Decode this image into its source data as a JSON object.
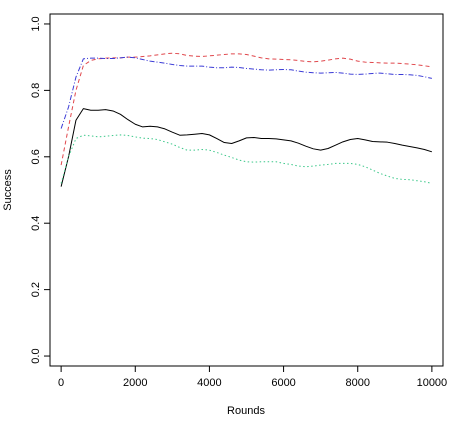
{
  "chart_data": {
    "type": "line",
    "title": "",
    "xlabel": "Rounds",
    "ylabel": "Success",
    "xlim": [
      -300,
      10300
    ],
    "ylim": [
      -0.03,
      1.03
    ],
    "x_ticks": [
      0,
      2000,
      4000,
      6000,
      8000,
      10000
    ],
    "y_ticks": [
      0.0,
      0.2,
      0.4,
      0.6,
      0.8,
      1.0
    ],
    "x_tick_labels": [
      "0",
      "2000",
      "4000",
      "6000",
      "8000",
      "10000"
    ],
    "y_tick_labels": [
      "0.0",
      "0.2",
      "0.4",
      "0.6",
      "0.8",
      "1.0"
    ],
    "grid": false,
    "legend": false,
    "series": [
      {
        "color": "#000000",
        "dash": "solid",
        "x": [
          0,
          200,
          400,
          600,
          800,
          1000,
          1200,
          1400,
          1600,
          1800,
          2000,
          2200,
          2400,
          2600,
          2800,
          3000,
          3200,
          3400,
          3600,
          3800,
          4000,
          4200,
          4400,
          4600,
          4800,
          5000,
          5200,
          5400,
          5600,
          5800,
          6000,
          6200,
          6400,
          6600,
          6800,
          7000,
          7200,
          7400,
          7600,
          7800,
          8000,
          8200,
          8400,
          8600,
          8800,
          9000,
          9200,
          9400,
          9600,
          9800,
          10000
        ],
        "y": [
          0.51,
          0.6,
          0.71,
          0.745,
          0.74,
          0.74,
          0.742,
          0.738,
          0.728,
          0.712,
          0.698,
          0.69,
          0.692,
          0.69,
          0.684,
          0.674,
          0.665,
          0.666,
          0.668,
          0.67,
          0.666,
          0.655,
          0.643,
          0.64,
          0.648,
          0.657,
          0.658,
          0.655,
          0.655,
          0.654,
          0.651,
          0.648,
          0.641,
          0.632,
          0.624,
          0.62,
          0.625,
          0.635,
          0.645,
          0.652,
          0.655,
          0.651,
          0.646,
          0.645,
          0.644,
          0.64,
          0.635,
          0.631,
          0.627,
          0.622,
          0.615
        ]
      },
      {
        "color": "#e0474c",
        "dash": "dashed",
        "x": [
          0,
          200,
          400,
          600,
          800,
          1000,
          1200,
          1400,
          1600,
          1800,
          2000,
          2200,
          2400,
          2600,
          2800,
          3000,
          3200,
          3400,
          3600,
          3800,
          4000,
          4200,
          4400,
          4600,
          4800,
          5000,
          5200,
          5400,
          5600,
          5800,
          6000,
          6200,
          6400,
          6600,
          6800,
          7000,
          7200,
          7400,
          7600,
          7800,
          8000,
          8200,
          8400,
          8600,
          8800,
          9000,
          9200,
          9400,
          9600,
          9800,
          10000
        ],
        "y": [
          0.575,
          0.69,
          0.8,
          0.875,
          0.89,
          0.895,
          0.897,
          0.898,
          0.898,
          0.9,
          0.9,
          0.902,
          0.904,
          0.907,
          0.91,
          0.912,
          0.91,
          0.905,
          0.903,
          0.902,
          0.904,
          0.906,
          0.908,
          0.91,
          0.91,
          0.908,
          0.903,
          0.898,
          0.895,
          0.894,
          0.893,
          0.892,
          0.89,
          0.887,
          0.886,
          0.888,
          0.891,
          0.895,
          0.897,
          0.894,
          0.888,
          0.885,
          0.884,
          0.883,
          0.882,
          0.882,
          0.881,
          0.879,
          0.877,
          0.874,
          0.871
        ]
      },
      {
        "color": "#3b3bd6",
        "dash": "dashdot",
        "x": [
          0,
          200,
          400,
          600,
          800,
          1000,
          1200,
          1400,
          1600,
          1800,
          2000,
          2200,
          2400,
          2600,
          2800,
          3000,
          3200,
          3400,
          3600,
          3800,
          4000,
          4200,
          4400,
          4600,
          4800,
          5000,
          5200,
          5400,
          5600,
          5800,
          6000,
          6200,
          6400,
          6600,
          6800,
          7000,
          7200,
          7400,
          7600,
          7800,
          8000,
          8200,
          8400,
          8600,
          8800,
          9000,
          9200,
          9400,
          9600,
          9800,
          10000
        ],
        "y": [
          0.685,
          0.75,
          0.84,
          0.895,
          0.897,
          0.897,
          0.896,
          0.896,
          0.898,
          0.9,
          0.898,
          0.893,
          0.888,
          0.885,
          0.882,
          0.878,
          0.875,
          0.873,
          0.873,
          0.873,
          0.87,
          0.868,
          0.868,
          0.87,
          0.869,
          0.866,
          0.864,
          0.862,
          0.861,
          0.862,
          0.863,
          0.862,
          0.858,
          0.855,
          0.853,
          0.852,
          0.853,
          0.854,
          0.852,
          0.849,
          0.848,
          0.849,
          0.851,
          0.852,
          0.85,
          0.848,
          0.848,
          0.847,
          0.845,
          0.841,
          0.836
        ]
      },
      {
        "color": "#3cc88a",
        "dash": "dotted",
        "x": [
          0,
          200,
          400,
          600,
          800,
          1000,
          1200,
          1400,
          1600,
          1800,
          2000,
          2200,
          2400,
          2600,
          2800,
          3000,
          3200,
          3400,
          3600,
          3800,
          4000,
          4200,
          4400,
          4600,
          4800,
          5000,
          5200,
          5400,
          5600,
          5800,
          6000,
          6200,
          6400,
          6600,
          6800,
          7000,
          7200,
          7400,
          7600,
          7800,
          8000,
          8200,
          8400,
          8600,
          8800,
          9000,
          9200,
          9400,
          9600,
          9800,
          10000
        ],
        "y": [
          0.52,
          0.6,
          0.655,
          0.665,
          0.663,
          0.66,
          0.662,
          0.664,
          0.666,
          0.664,
          0.66,
          0.656,
          0.655,
          0.652,
          0.645,
          0.638,
          0.628,
          0.62,
          0.62,
          0.622,
          0.62,
          0.613,
          0.605,
          0.598,
          0.59,
          0.585,
          0.584,
          0.585,
          0.585,
          0.585,
          0.58,
          0.577,
          0.572,
          0.57,
          0.572,
          0.575,
          0.577,
          0.58,
          0.58,
          0.58,
          0.577,
          0.57,
          0.56,
          0.55,
          0.542,
          0.535,
          0.532,
          0.531,
          0.528,
          0.525,
          0.52
        ]
      }
    ]
  }
}
